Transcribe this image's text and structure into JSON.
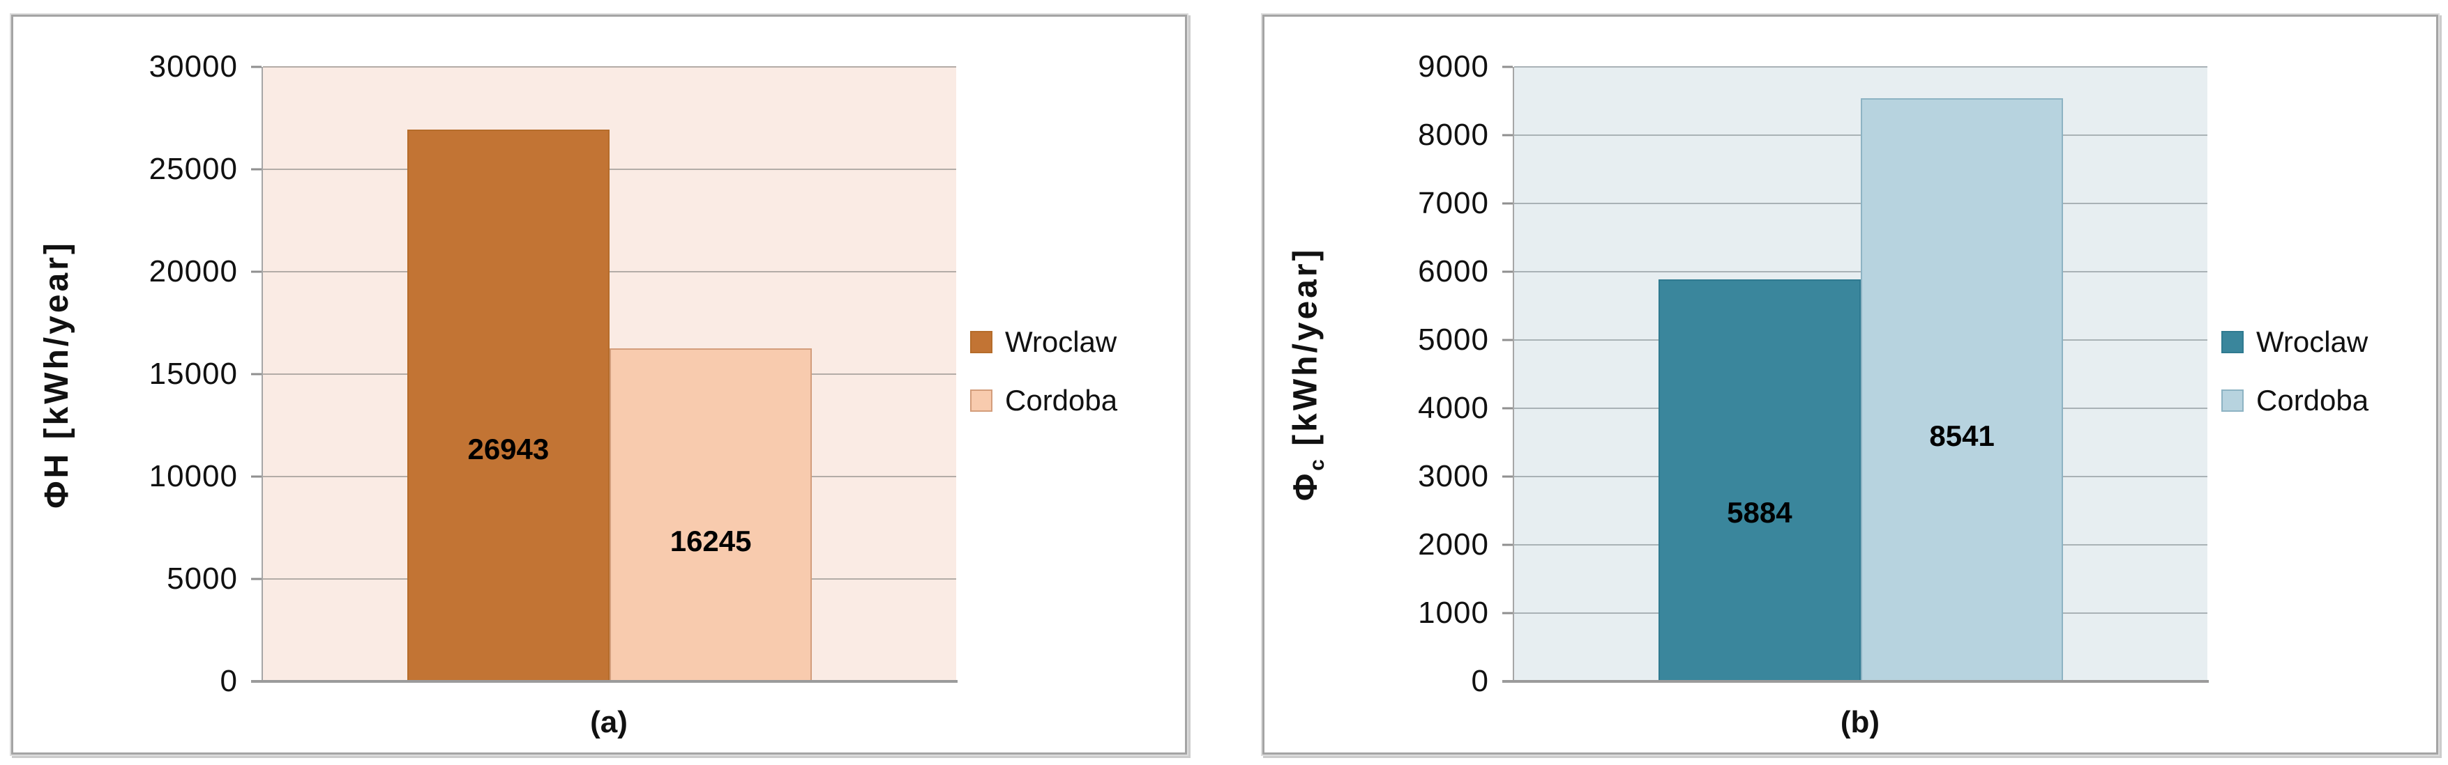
{
  "chart_data": [
    {
      "type": "bar",
      "caption": "(a)",
      "ylabel": {
        "symbol": "Φ",
        "sub": "H",
        "sub_is_subscript": false,
        "unit": "[kWh/year]"
      },
      "categories": [
        "Wroclaw",
        "Cordoba"
      ],
      "values": [
        26943,
        16245
      ],
      "data_labels": [
        "26943",
        "16245"
      ],
      "ymin": 0,
      "ymax": 30000,
      "ytick_step": 5000,
      "yticks": [
        0,
        5000,
        10000,
        15000,
        20000,
        25000,
        30000
      ],
      "series_colors": [
        {
          "label": "Wroclaw",
          "fill": "#c27434",
          "border": "#b56c2a"
        },
        {
          "label": "Cordoba",
          "fill": "#f8cbae",
          "border": "#d39d7b"
        }
      ],
      "plot_bg": "#faebe4",
      "gridline_color": "#b3aca7",
      "grid": true,
      "legend_position": "right"
    },
    {
      "type": "bar",
      "caption": "(b)",
      "ylabel": {
        "symbol": "Φ",
        "sub": "c",
        "sub_is_subscript": true,
        "unit": "[kWh/year]"
      },
      "categories": [
        "Wroclaw",
        "Cordoba"
      ],
      "values": [
        5884,
        8541
      ],
      "data_labels": [
        "5884",
        "8541"
      ],
      "ymin": 0,
      "ymax": 9000,
      "ytick_step": 1000,
      "yticks": [
        0,
        1000,
        2000,
        3000,
        4000,
        5000,
        6000,
        7000,
        8000,
        9000
      ],
      "series_colors": [
        {
          "label": "Wroclaw",
          "fill": "#3a869c",
          "border": "#2f7a90"
        },
        {
          "label": "Cordoba",
          "fill": "#b7d3df",
          "border": "#8db3c3"
        }
      ],
      "plot_bg": "#e7eef1",
      "gridline_color": "#a9b2b6",
      "grid": true,
      "legend_position": "right"
    }
  ]
}
